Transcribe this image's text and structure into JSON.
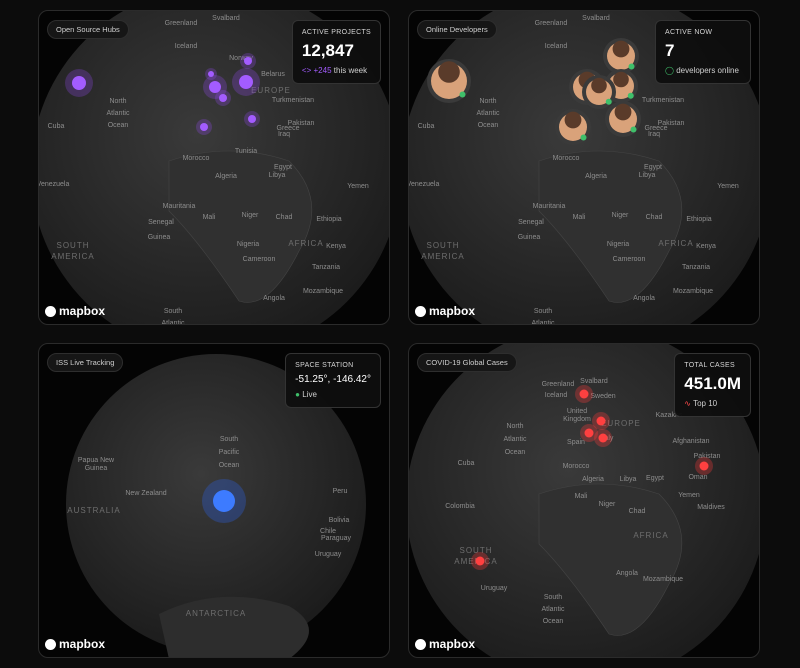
{
  "cards": [
    {
      "tag": "Open Source Hubs",
      "stat_label": "ACTIVE PROJECTS",
      "stat_value": "12,847",
      "stat_delta": "+245",
      "stat_note": "this week",
      "brand": "mapbox",
      "map_labels": [
        "Greenland",
        "Svalbard",
        "Iceland",
        "Norway",
        "Belarus",
        "North",
        "Atlantic",
        "Ocean",
        "EUROPE",
        "Turkmenistan",
        "Cuba",
        "Pakistan",
        "Iraq",
        "Greece",
        "Tunisia",
        "Morocco",
        "Egypt",
        "Libya",
        "Algeria",
        "Yemen",
        "Venezuela",
        "Mauritania",
        "Mali",
        "Niger",
        "Chad",
        "Ethiopia",
        "Senegal",
        "Guinea",
        "Nigeria",
        "AFRICA",
        "Kenya",
        "SOUTH",
        "AMERICA",
        "Cameroon",
        "Tanzania",
        "Angola",
        "Mozambique",
        "South",
        "Atlantic"
      ]
    },
    {
      "tag": "Online Developers",
      "stat_label": "ACTIVE NOW",
      "stat_value": "7",
      "stat_note": "developers online",
      "brand": "mapbox",
      "map_labels": [
        "Greenland",
        "Svalbard",
        "Iceland",
        "North",
        "Atlantic",
        "Ocean",
        "Turkmenistan",
        "Cuba",
        "Pakistan",
        "Iraq",
        "Greece",
        "Morocco",
        "Egypt",
        "Libya",
        "Algeria",
        "Yemen",
        "Venezuela",
        "Mauritania",
        "Mali",
        "Niger",
        "Chad",
        "Ethiopia",
        "Senegal",
        "Guinea",
        "Nigeria",
        "AFRICA",
        "Kenya",
        "SOUTH",
        "AMERICA",
        "Cameroon",
        "Tanzania",
        "Angola",
        "Mozambique",
        "South",
        "Atlantic"
      ]
    },
    {
      "tag": "ISS Live Tracking",
      "stat_label": "SPACE STATION",
      "stat_value": "-51.25°, -146.42°",
      "stat_note": "Live",
      "brand": "mapbox",
      "map_labels": [
        "South",
        "Pacific",
        "Ocean",
        "Papua New",
        "Guinea",
        "New Zealand",
        "AUSTRALIA",
        "Peru",
        "Bolivia",
        "Chile",
        "Paraguay",
        "Uruguay",
        "ANTARCTICA"
      ]
    },
    {
      "tag": "COVID-19 Global Cases",
      "stat_label": "TOTAL CASES",
      "stat_value": "451.0M",
      "stat_note": "Top 10",
      "brand": "mapbox",
      "map_labels": [
        "Greenland",
        "Svalbard",
        "Iceland",
        "Sweden",
        "United",
        "Kingdom",
        "EUROPE",
        "Kazakhs",
        "Spain",
        "Italy",
        "North",
        "Atlantic",
        "Ocean",
        "Cuba",
        "Afghanistan",
        "Pakistan",
        "Morocco",
        "Algeria",
        "Libya",
        "Egypt",
        "Oman",
        "Yemen",
        "Colombia",
        "Mali",
        "Niger",
        "Chad",
        "Maldives",
        "AFRICA",
        "SOUTH",
        "AMERICA",
        "Angola",
        "Uruguay",
        "Mozambique",
        "South",
        "Atlantic",
        "Ocean"
      ]
    }
  ]
}
